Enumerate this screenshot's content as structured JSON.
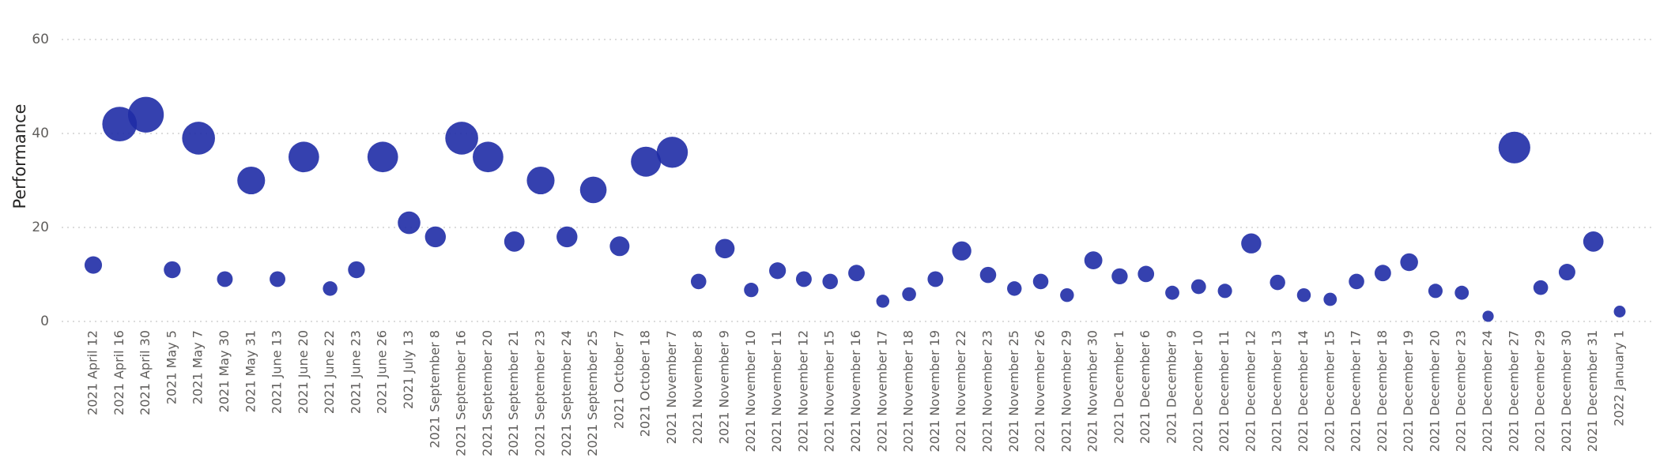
{
  "chart_data": {
    "type": "scatter",
    "y_label": "Performance",
    "color": "#1f2ca6",
    "grid": true,
    "ylim": [
      0,
      60
    ],
    "yticks": [
      0,
      20,
      40,
      60
    ],
    "categories": [
      "2021 April 12",
      "2021 April 16",
      "2021 April 30",
      "2021 May 5",
      "2021 May 7",
      "2021 May 30",
      "2021 May 31",
      "2021 June 13",
      "2021 June 20",
      "2021 June 22",
      "2021 June 23",
      "2021 June 26",
      "2021 July 13",
      "2021 September 8",
      "2021 September 16",
      "2021 September 20",
      "2021 September 21",
      "2021 September 23",
      "2021 September 24",
      "2021 September 25",
      "2021 October 7",
      "2021 October 18",
      "2021 November 7",
      "2021 November 8",
      "2021 November 9",
      "2021 November 10",
      "2021 November 11",
      "2021 November 12",
      "2021 November 15",
      "2021 November 16",
      "2021 November 17",
      "2021 November 18",
      "2021 November 19",
      "2021 November 22",
      "2021 November 23",
      "2021 November 25",
      "2021 November 26",
      "2021 November 29",
      "2021 November 30",
      "2021 December 1",
      "2021 December 6",
      "2021 December 9",
      "2021 December 10",
      "2021 December 11",
      "2021 December 12",
      "2021 December 13",
      "2021 December 14",
      "2021 December 15",
      "2021 December 17",
      "2021 December 18",
      "2021 December 19",
      "2021 December 20",
      "2021 December 23",
      "2021 December 24",
      "2021 December 27",
      "2021 December 29",
      "2021 December 30",
      "2021 December 31",
      "2022 January 1"
    ],
    "values": [
      12,
      42,
      44,
      11,
      39,
      9,
      30,
      9,
      35,
      7,
      11,
      35,
      21,
      18,
      39,
      35,
      17,
      30,
      18,
      28,
      16,
      34,
      36,
      8.5,
      15.5,
      6.7,
      10.8,
      9,
      8.5,
      10.3,
      4.3,
      5.8,
      9,
      15,
      9.9,
      7,
      8.5,
      5.6,
      13,
      9.6,
      10.1,
      6.1,
      7.4,
      6.5,
      16.6,
      8.3,
      5.6,
      4.7,
      8.5,
      10.3,
      12.6,
      6.5,
      6.1,
      1.1,
      37,
      7.2,
      10.5,
      17,
      2.1
    ]
  }
}
